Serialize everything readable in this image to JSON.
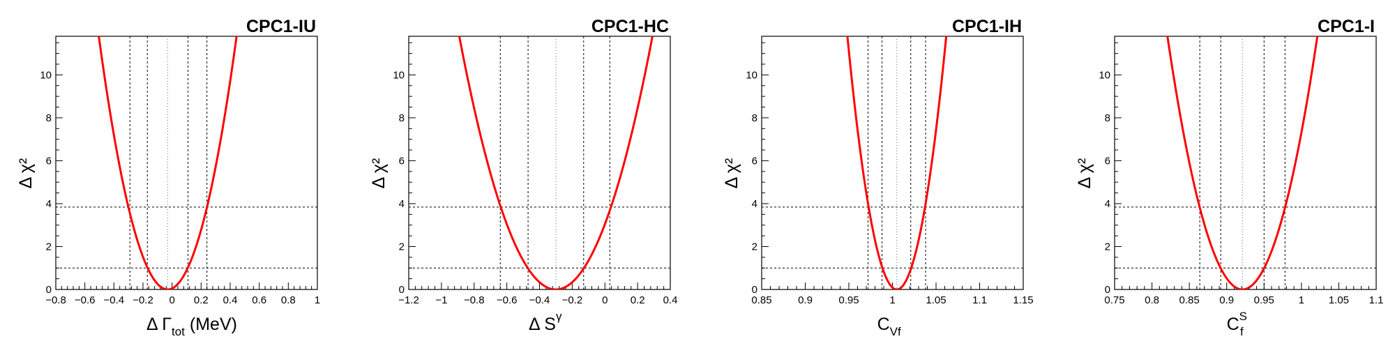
{
  "figure": {
    "background": "#ffffff",
    "curve_color": "#ff0000",
    "line_color": "#000000"
  },
  "chart_data": [
    {
      "type": "line",
      "title": "CPC1-IU",
      "xlabel": {
        "prefix": "Δ ",
        "main": "Γ",
        "sub": "tot",
        "sup": "",
        "suffix": " (MeV)"
      },
      "ylabel": "Δ χ²",
      "xlim": [
        -0.8,
        1.0
      ],
      "ylim": [
        0,
        11.8
      ],
      "xticks": [
        -0.8,
        -0.6,
        -0.4,
        -0.2,
        0,
        0.2,
        0.4,
        0.6,
        0.8,
        1
      ],
      "xtick_labels": [
        "−0.8",
        "−0.6",
        "−0.4",
        "−0.2",
        "0",
        "0.2",
        "0.4",
        "0.6",
        "0.8",
        "1"
      ],
      "yticks": [
        0,
        2,
        4,
        6,
        8,
        10
      ],
      "ytick_labels": [
        "0",
        "2",
        "4",
        "6",
        "8",
        "10"
      ],
      "parabola": {
        "center": -0.03,
        "sigma": 0.138
      },
      "hlines": [
        1.0,
        3.84
      ],
      "vlines_dashed": [
        -0.29,
        -0.17,
        0.11,
        0.24
      ],
      "vlines_dotted": [
        -0.03
      ]
    },
    {
      "type": "line",
      "title": "CPC1-HC",
      "xlabel": {
        "prefix": "Δ ",
        "main": "S",
        "sub": "",
        "sup": "γ",
        "suffix": ""
      },
      "ylabel": "Δ χ²",
      "xlim": [
        -1.2,
        0.4
      ],
      "ylim": [
        0,
        11.8
      ],
      "xticks": [
        -1.2,
        -1.0,
        -0.8,
        -0.6,
        -0.4,
        -0.2,
        0,
        0.2,
        0.4
      ],
      "xtick_labels": [
        "−1.2",
        "−1",
        "−0.8",
        "−0.6",
        "−0.4",
        "−0.2",
        "0",
        "0.2",
        "0.4"
      ],
      "yticks": [
        0,
        2,
        4,
        6,
        8,
        10
      ],
      "ytick_labels": [
        "0",
        "2",
        "4",
        "6",
        "8",
        "10"
      ],
      "parabola": {
        "center": -0.3,
        "sigma": 0.172
      },
      "hlines": [
        1.0,
        3.84
      ],
      "vlines_dashed": [
        -0.64,
        -0.47,
        -0.13,
        0.03
      ],
      "vlines_dotted": [
        -0.3
      ]
    },
    {
      "type": "line",
      "title": "CPC1-IH",
      "xlabel": {
        "prefix": "",
        "main": "C",
        "sub": "Vf",
        "sup": "",
        "suffix": ""
      },
      "ylabel": "Δ χ²",
      "xlim": [
        0.85,
        1.15
      ],
      "ylim": [
        0,
        11.8
      ],
      "xticks": [
        0.85,
        0.9,
        0.95,
        1.0,
        1.05,
        1.1,
        1.15
      ],
      "xtick_labels": [
        "0.85",
        "0.9",
        "0.95",
        "1",
        "1.05",
        "1.1",
        "1.15"
      ],
      "yticks": [
        0,
        2,
        4,
        6,
        8,
        10
      ],
      "ytick_labels": [
        "0",
        "2",
        "4",
        "6",
        "8",
        "10"
      ],
      "parabola": {
        "center": 1.005,
        "sigma": 0.0165
      },
      "hlines": [
        1.0,
        3.84
      ],
      "vlines_dashed": [
        0.972,
        0.988,
        1.021,
        1.038
      ],
      "vlines_dotted": [
        1.005
      ]
    },
    {
      "type": "line",
      "title": "CPC1-I",
      "xlabel": {
        "prefix": "",
        "main": "C",
        "sub": "f",
        "sup": "S",
        "suffix": ""
      },
      "ylabel": "Δ χ²",
      "xlim": [
        0.75,
        1.1
      ],
      "ylim": [
        0,
        11.8
      ],
      "xticks": [
        0.75,
        0.8,
        0.85,
        0.9,
        0.95,
        1.0,
        1.05,
        1.1
      ],
      "xtick_labels": [
        "0.75",
        "0.8",
        "0.85",
        "0.9",
        "0.95",
        "1",
        "1.05",
        "1.1"
      ],
      "yticks": [
        0,
        2,
        4,
        6,
        8,
        10
      ],
      "ytick_labels": [
        "0",
        "2",
        "4",
        "6",
        "8",
        "10"
      ],
      "parabola": {
        "center": 0.921,
        "sigma": 0.0292
      },
      "hlines": [
        1.0,
        3.84
      ],
      "vlines_dashed": [
        0.864,
        0.892,
        0.95,
        0.978
      ],
      "vlines_dotted": [
        0.921
      ]
    }
  ]
}
